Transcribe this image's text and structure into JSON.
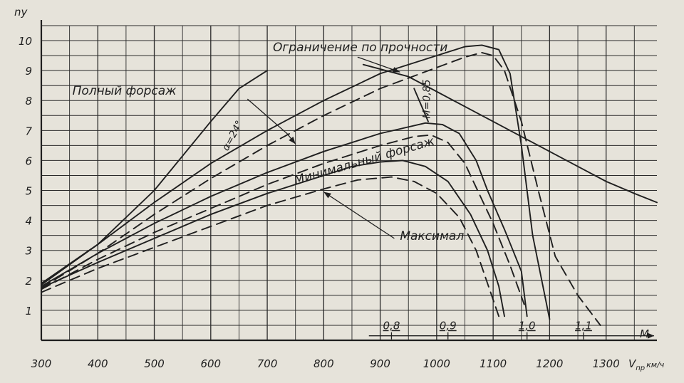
{
  "chart_data": {
    "type": "line",
    "ylabel": "ny",
    "xlabel": "V",
    "xlabel_sub": "пр",
    "xlabel_unit": "км/ч",
    "secondary_x_label": "M",
    "xlim": [
      300,
      1390
    ],
    "ylim": [
      0,
      10.5
    ],
    "x_ticks": [
      300,
      400,
      500,
      600,
      700,
      800,
      900,
      1000,
      1100,
      1200,
      1300
    ],
    "y_ticks": [
      1,
      2,
      3,
      4,
      5,
      6,
      7,
      8,
      9,
      10
    ],
    "mach_ticks": [
      {
        "label": "0,8",
        "v": 920
      },
      {
        "label": "0,9",
        "v": 1020
      },
      {
        "label": "1,0",
        "v": 1160
      },
      {
        "label": "1,1",
        "v": 1260
      }
    ],
    "grid": true,
    "colors": {
      "background": "#e6e3da",
      "ink": "#1f1f1f",
      "grid": "#2a2a2a"
    },
    "series": [
      {
        "style": "solid",
        "x": [
          300,
          400,
          500,
          600,
          650,
          700
        ],
        "y": [
          1.9,
          3.2,
          5.0,
          7.3,
          8.4,
          9.0
        ]
      },
      {
        "style": "solid",
        "x": [
          300,
          400,
          500,
          600,
          700,
          800,
          900,
          1000,
          1050,
          1080,
          1110,
          1130,
          1150,
          1170,
          1200
        ],
        "y": [
          1.85,
          3.2,
          4.6,
          5.9,
          7.0,
          8.0,
          8.9,
          9.5,
          9.8,
          9.85,
          9.7,
          8.9,
          6.5,
          3.5,
          0.7
        ]
      },
      {
        "style": "dashed",
        "x": [
          300,
          400,
          500,
          600,
          700,
          800,
          900,
          1000,
          1050,
          1080,
          1100,
          1120,
          1150,
          1180,
          1210,
          1250,
          1290
        ],
        "y": [
          1.75,
          2.9,
          4.2,
          5.4,
          6.5,
          7.5,
          8.4,
          9.1,
          9.45,
          9.6,
          9.5,
          9.0,
          7.3,
          5.0,
          2.8,
          1.5,
          0.5
        ]
      },
      {
        "style": "solid",
        "x": [
          300,
          400,
          500,
          600,
          700,
          800,
          900,
          980,
          1010,
          1040,
          1070,
          1090,
          1120,
          1150,
          1160
        ],
        "y": [
          1.8,
          2.9,
          3.9,
          4.8,
          5.6,
          6.3,
          6.9,
          7.25,
          7.2,
          6.9,
          6.0,
          5.0,
          3.7,
          2.3,
          0.8
        ]
      },
      {
        "style": "dashed",
        "x": [
          300,
          400,
          500,
          600,
          700,
          800,
          900,
          960,
          990,
          1020,
          1050,
          1070,
          1100,
          1130,
          1155
        ],
        "y": [
          1.7,
          2.7,
          3.6,
          4.4,
          5.2,
          5.9,
          6.5,
          6.8,
          6.85,
          6.6,
          5.9,
          5.1,
          3.9,
          2.5,
          1.2
        ]
      },
      {
        "style": "solid",
        "x": [
          300,
          400,
          500,
          600,
          700,
          800,
          850,
          900,
          940,
          980,
          1020,
          1060,
          1090,
          1110,
          1120
        ],
        "y": [
          1.75,
          2.6,
          3.4,
          4.2,
          4.9,
          5.5,
          5.8,
          5.95,
          6.0,
          5.8,
          5.3,
          4.2,
          3.0,
          1.8,
          0.8
        ]
      },
      {
        "style": "dashed",
        "x": [
          300,
          400,
          500,
          600,
          700,
          800,
          860,
          920,
          960,
          1000,
          1040,
          1070,
          1090,
          1110
        ],
        "y": [
          1.6,
          2.4,
          3.1,
          3.8,
          4.5,
          5.05,
          5.35,
          5.45,
          5.3,
          4.9,
          4.1,
          3.0,
          1.9,
          0.8
        ]
      },
      {
        "style": "solid",
        "x": [
          870,
          950,
          1000,
          1050,
          1100,
          1150,
          1200,
          1250,
          1300,
          1350,
          1390
        ],
        "y": [
          9.2,
          8.8,
          8.3,
          7.8,
          7.3,
          6.8,
          6.3,
          5.8,
          5.3,
          4.9,
          4.6
        ]
      },
      {
        "style": "solid",
        "x": [
          960,
          985
        ],
        "y": [
          8.4,
          7.3
        ]
      }
    ],
    "annotations": [
      {
        "text": "Ограничение по прочности",
        "x": 710,
        "y": 9.65,
        "angle": 0
      },
      {
        "text": "Полный форсаж",
        "x": 355,
        "y": 8.2,
        "angle": 0
      },
      {
        "text": "Минимальный форсаж",
        "x": 750,
        "y": 5.2,
        "angle": -16
      },
      {
        "text": "Максимал",
        "x": 935,
        "y": 3.35,
        "angle": 0
      },
      {
        "text": "α=24°",
        "x": 630,
        "y": 6.3,
        "angle": -62,
        "small": true
      },
      {
        "text": "M=0,85",
        "x": 988,
        "y": 7.4,
        "angle": -90,
        "small": true
      }
    ],
    "leaders": [
      {
        "x": [
          860,
          935
        ],
        "y": [
          9.45,
          8.95
        ]
      },
      {
        "x": [
          665,
          735,
          750
        ],
        "y": [
          8.05,
          6.9,
          6.55
        ]
      },
      {
        "x": [
          925,
          800
        ],
        "y": [
          3.4,
          4.95
        ]
      }
    ]
  }
}
